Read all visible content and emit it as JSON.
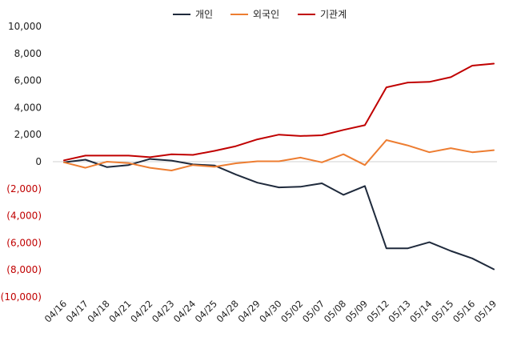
{
  "chart_data": {
    "type": "line",
    "title": "",
    "xlabel": "",
    "ylabel": "",
    "ylim": [
      -10000,
      10000
    ],
    "ytick_step": 2000,
    "negative_format": "parentheses",
    "negative_tick_color": "#c00000",
    "positive_tick_color": "#222222",
    "grid": false,
    "legend_position": "top-center",
    "categories": [
      "04/16",
      "04/17",
      "04/18",
      "04/21",
      "04/22",
      "04/23",
      "04/24",
      "04/25",
      "04/28",
      "04/29",
      "04/30",
      "05/02",
      "05/07",
      "05/08",
      "05/09",
      "05/12",
      "05/13",
      "05/14",
      "05/15",
      "05/16",
      "05/19"
    ],
    "series": [
      {
        "name": "개인",
        "color": "#1f2a3c",
        "values": [
          -50,
          150,
          -400,
          -250,
          200,
          80,
          -200,
          -280,
          -950,
          -1550,
          -1900,
          -1850,
          -1600,
          -2450,
          -1800,
          -6400,
          -6400,
          -5950,
          -6600,
          -7150,
          -7950
        ]
      },
      {
        "name": "외국인",
        "color": "#ed7d31",
        "values": [
          -50,
          -450,
          0,
          -100,
          -450,
          -650,
          -250,
          -380,
          -120,
          30,
          30,
          300,
          -50,
          550,
          -250,
          1600,
          1200,
          700,
          1000,
          700,
          850
        ]
      },
      {
        "name": "기관계",
        "color": "#c00000",
        "values": [
          100,
          450,
          450,
          450,
          330,
          550,
          500,
          800,
          1150,
          1650,
          2000,
          1900,
          1950,
          2350,
          2700,
          5500,
          5850,
          5900,
          6250,
          7100,
          7250
        ]
      }
    ]
  }
}
